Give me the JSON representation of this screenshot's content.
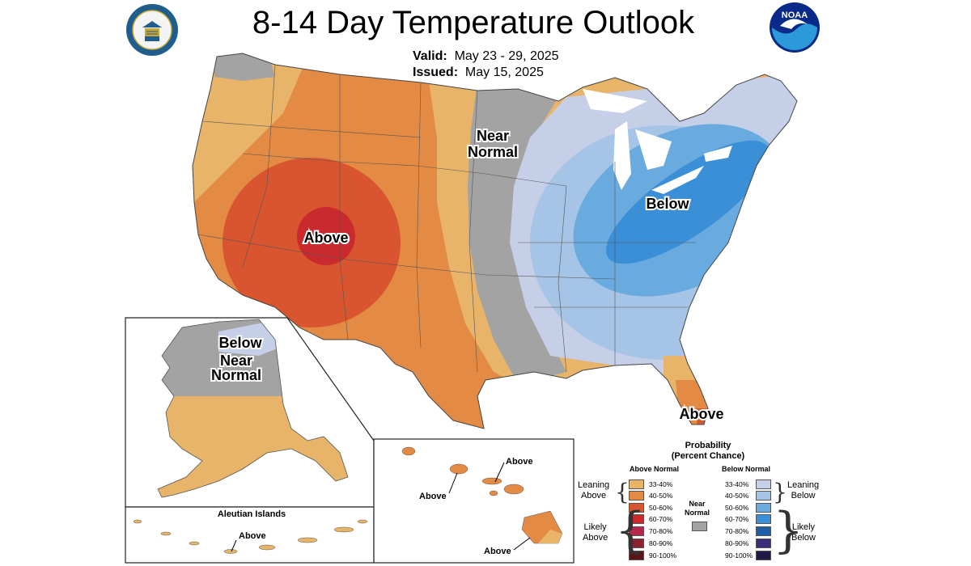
{
  "header": {
    "title": "8-14 Day Temperature Outlook",
    "valid_label": "Valid:",
    "valid_value": "May 23 - 29, 2025",
    "issued_label": "Issued:",
    "issued_value": "May 15, 2025"
  },
  "logos": {
    "left": "department-of-commerce-seal",
    "right": "noaa-logo"
  },
  "map_labels": {
    "conus_above": "Above",
    "conus_below": "Below",
    "conus_near_normal_1": "Near",
    "conus_near_normal_2": "Normal",
    "florida_above": "Above",
    "alaska_below": "Below",
    "alaska_near_1": "Near",
    "alaska_near_2": "Normal",
    "aleutian_title": "Aleutian Islands",
    "aleutian_above": "Above",
    "hawaii_above_1": "Above",
    "hawaii_above_2": "Above",
    "hawaii_above_3": "Above"
  },
  "colors": {
    "above_33_40": "#e8b46a",
    "above_40_50": "#e38b45",
    "above_50_60": "#d95530",
    "above_60_70": "#c92a2e",
    "above_70_80": "#b5284a",
    "above_80_90": "#8a2030",
    "above_90_100": "#5a1518",
    "near_normal": "#a3a3a3",
    "below_33_40": "#c6cfe8",
    "below_40_50": "#a6c4e6",
    "below_50_60": "#6aabdf",
    "below_60_70": "#3a8fd6",
    "below_70_80": "#1c5fa8",
    "below_80_90": "#3a2c7c",
    "below_90_100": "#231848"
  },
  "legend": {
    "title_1": "Probability",
    "title_2": "(Percent Chance)",
    "above_head": "Above Normal",
    "below_head": "Below Normal",
    "near_1": "Near",
    "near_2": "Normal",
    "leaning_above_1": "Leaning",
    "leaning_above_2": "Above",
    "likely_above_1": "Likely",
    "likely_above_2": "Above",
    "leaning_below_1": "Leaning",
    "leaning_below_2": "Below",
    "likely_below_1": "Likely",
    "likely_below_2": "Below",
    "above_ranges": [
      "33-40%",
      "40-50%",
      "50-60%",
      "60-70%",
      "70-80%",
      "80-90%",
      "90-100%"
    ],
    "below_ranges": [
      "33-40%",
      "40-50%",
      "50-60%",
      "60-70%",
      "70-80%",
      "80-90%",
      "90-100%"
    ]
  }
}
